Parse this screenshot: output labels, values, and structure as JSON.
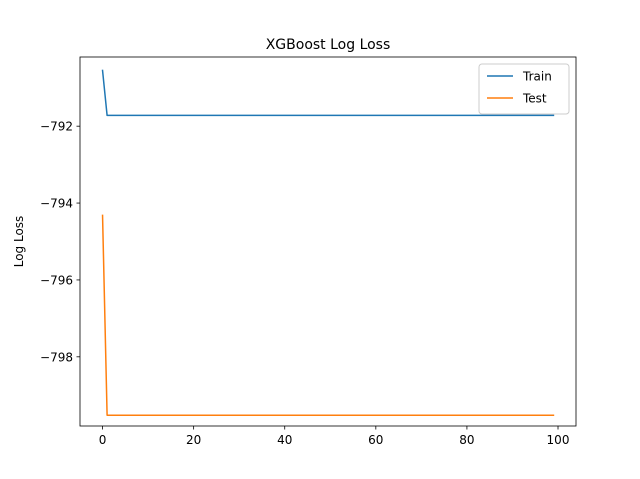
{
  "chart_data": {
    "type": "line",
    "title": "XGBoost Log Loss",
    "xlabel": "",
    "ylabel": "Log Loss",
    "xlim": [
      -4.95,
      103.95
    ],
    "ylim": [
      -799.8,
      -790.2
    ],
    "xticks": [
      0,
      20,
      40,
      60,
      80,
      100
    ],
    "yticks": [
      -792,
      -794,
      -796,
      -798
    ],
    "grid": false,
    "legend_position": "top-right",
    "series": [
      {
        "name": "Train",
        "color": "#1f77b4",
        "points": [
          [
            0,
            -790.55
          ],
          [
            1,
            -791.72
          ],
          [
            99,
            -791.72
          ]
        ]
      },
      {
        "name": "Test",
        "color": "#ff7f0e",
        "points": [
          [
            0,
            -794.32
          ],
          [
            1,
            -799.52
          ],
          [
            99,
            -799.52
          ]
        ]
      }
    ]
  }
}
